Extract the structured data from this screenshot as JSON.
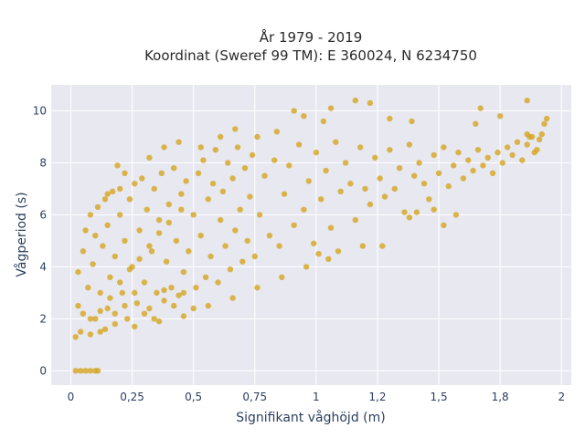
{
  "chart_data": {
    "type": "scatter",
    "title_lines": [
      "År 1979 - 2019",
      "Koordinat (Sweref 99 TM): E 360024, N 6234750"
    ],
    "xlabel": "Signifikant våghöjd (m)",
    "ylabel": "Vågperiod (s)",
    "xlim": [
      -0.08,
      2.04
    ],
    "ylim": [
      -0.55,
      11
    ],
    "x_ticks": [
      {
        "value": 0,
        "label": "0"
      },
      {
        "value": 0.25,
        "label": "0,25"
      },
      {
        "value": 0.5,
        "label": "0,5"
      },
      {
        "value": 0.75,
        "label": "0,75"
      },
      {
        "value": 1,
        "label": "1"
      },
      {
        "value": 1.25,
        "label": "1,2"
      },
      {
        "value": 1.5,
        "label": "1,5"
      },
      {
        "value": 1.75,
        "label": "1,8"
      },
      {
        "value": 2,
        "label": "2"
      }
    ],
    "y_ticks": [
      {
        "value": 0,
        "label": "0"
      },
      {
        "value": 2,
        "label": "2"
      },
      {
        "value": 4,
        "label": "4"
      },
      {
        "value": 6,
        "label": "6"
      },
      {
        "value": 8,
        "label": "8"
      },
      {
        "value": 10,
        "label": "10"
      }
    ],
    "grid": true,
    "marker_color": "#D4A520",
    "plot_background": "#E8E8F1",
    "series": [
      {
        "points": [
          [
            0.02,
            0
          ],
          [
            0.04,
            0
          ],
          [
            0.06,
            0
          ],
          [
            0.08,
            0
          ],
          [
            0.1,
            0
          ],
          [
            0.11,
            0
          ],
          [
            0.02,
            1.3
          ],
          [
            0.03,
            2.5
          ],
          [
            0.03,
            3.8
          ],
          [
            0.04,
            1.5
          ],
          [
            0.05,
            4.6
          ],
          [
            0.05,
            2.2
          ],
          [
            0.06,
            5.4
          ],
          [
            0.07,
            3.2
          ],
          [
            0.08,
            1.4
          ],
          [
            0.08,
            6.0
          ],
          [
            0.09,
            4.1
          ],
          [
            0.1,
            2.0
          ],
          [
            0.1,
            5.2
          ],
          [
            0.11,
            6.3
          ],
          [
            0.12,
            3.0
          ],
          [
            0.12,
            1.5
          ],
          [
            0.13,
            4.8
          ],
          [
            0.14,
            6.6
          ],
          [
            0.15,
            2.4
          ],
          [
            0.15,
            5.6
          ],
          [
            0.16,
            3.6
          ],
          [
            0.17,
            6.9
          ],
          [
            0.18,
            1.8
          ],
          [
            0.18,
            4.4
          ],
          [
            0.2,
            6.0
          ],
          [
            0.2,
            7.0
          ],
          [
            0.21,
            3.0
          ],
          [
            0.22,
            5.0
          ],
          [
            0.23,
            2.0
          ],
          [
            0.24,
            6.6
          ],
          [
            0.25,
            4.0
          ],
          [
            0.26,
            7.2
          ],
          [
            0.27,
            2.6
          ],
          [
            0.28,
            5.4
          ],
          [
            0.29,
            7.4
          ],
          [
            0.3,
            3.4
          ],
          [
            0.31,
            6.2
          ],
          [
            0.32,
            2.4
          ],
          [
            0.33,
            4.6
          ],
          [
            0.34,
            7.0
          ],
          [
            0.35,
            3.0
          ],
          [
            0.36,
            5.8
          ],
          [
            0.37,
            7.6
          ],
          [
            0.38,
            2.7
          ],
          [
            0.39,
            4.2
          ],
          [
            0.4,
            6.4
          ],
          [
            0.41,
            3.2
          ],
          [
            0.42,
            7.8
          ],
          [
            0.43,
            5.0
          ],
          [
            0.44,
            2.9
          ],
          [
            0.45,
            6.8
          ],
          [
            0.46,
            3.8
          ],
          [
            0.47,
            7.3
          ],
          [
            0.48,
            4.6
          ],
          [
            0.5,
            6.0
          ],
          [
            0.51,
            3.2
          ],
          [
            0.52,
            7.6
          ],
          [
            0.53,
            5.2
          ],
          [
            0.54,
            8.1
          ],
          [
            0.55,
            3.6
          ],
          [
            0.56,
            6.6
          ],
          [
            0.57,
            4.4
          ],
          [
            0.58,
            7.2
          ],
          [
            0.59,
            8.5
          ],
          [
            0.6,
            3.4
          ],
          [
            0.61,
            5.8
          ],
          [
            0.62,
            6.9
          ],
          [
            0.63,
            4.8
          ],
          [
            0.64,
            8.0
          ],
          [
            0.65,
            3.9
          ],
          [
            0.66,
            7.4
          ],
          [
            0.67,
            5.4
          ],
          [
            0.68,
            8.6
          ],
          [
            0.69,
            6.2
          ],
          [
            0.7,
            4.2
          ],
          [
            0.71,
            7.8
          ],
          [
            0.72,
            5.0
          ],
          [
            0.73,
            6.7
          ],
          [
            0.74,
            8.3
          ],
          [
            0.75,
            4.4
          ],
          [
            0.77,
            6.0
          ],
          [
            0.79,
            7.5
          ],
          [
            0.81,
            5.2
          ],
          [
            0.83,
            8.1
          ],
          [
            0.85,
            4.8
          ],
          [
            0.87,
            6.8
          ],
          [
            0.89,
            7.9
          ],
          [
            0.91,
            5.6
          ],
          [
            0.93,
            8.7
          ],
          [
            0.95,
            6.2
          ],
          [
            0.97,
            7.3
          ],
          [
            0.99,
            4.9
          ],
          [
            1.0,
            8.4
          ],
          [
            1.02,
            6.6
          ],
          [
            1.04,
            7.7
          ],
          [
            1.06,
            5.5
          ],
          [
            1.08,
            8.8
          ],
          [
            1.1,
            6.9
          ],
          [
            1.12,
            8.0
          ],
          [
            1.14,
            7.2
          ],
          [
            1.16,
            5.8
          ],
          [
            1.18,
            8.6
          ],
          [
            1.2,
            7.0
          ],
          [
            1.22,
            6.4
          ],
          [
            1.24,
            8.2
          ],
          [
            1.26,
            7.4
          ],
          [
            1.28,
            6.7
          ],
          [
            1.3,
            8.5
          ],
          [
            1.32,
            7.0
          ],
          [
            1.34,
            7.8
          ],
          [
            1.36,
            6.1
          ],
          [
            1.38,
            8.7
          ],
          [
            1.4,
            7.5
          ],
          [
            1.42,
            8.0
          ],
          [
            1.44,
            7.2
          ],
          [
            1.46,
            6.6
          ],
          [
            1.48,
            8.3
          ],
          [
            1.5,
            7.6
          ],
          [
            1.52,
            8.6
          ],
          [
            1.54,
            7.1
          ],
          [
            1.56,
            7.9
          ],
          [
            1.58,
            8.4
          ],
          [
            1.6,
            7.4
          ],
          [
            1.62,
            8.1
          ],
          [
            1.64,
            7.7
          ],
          [
            1.66,
            8.5
          ],
          [
            1.68,
            7.9
          ],
          [
            1.7,
            8.2
          ],
          [
            1.72,
            7.6
          ],
          [
            1.74,
            8.4
          ],
          [
            1.76,
            8.0
          ],
          [
            1.78,
            8.6
          ],
          [
            1.8,
            8.3
          ],
          [
            1.82,
            8.8
          ],
          [
            1.84,
            8.1
          ],
          [
            1.86,
            8.7
          ],
          [
            1.88,
            9.0
          ],
          [
            1.9,
            8.5
          ],
          [
            1.92,
            9.1
          ],
          [
            1.94,
            9.7
          ],
          [
            1.93,
            9.5
          ],
          [
            1.91,
            8.9
          ],
          [
            1.89,
            8.4
          ],
          [
            1.87,
            9.0
          ],
          [
            0.76,
            9.0
          ],
          [
            0.84,
            9.2
          ],
          [
            0.91,
            10.0
          ],
          [
            0.95,
            9.8
          ],
          [
            1.03,
            9.6
          ],
          [
            1.06,
            10.1
          ],
          [
            1.16,
            10.4
          ],
          [
            1.22,
            10.3
          ],
          [
            1.3,
            9.7
          ],
          [
            1.39,
            9.6
          ],
          [
            1.65,
            9.5
          ],
          [
            1.67,
            10.1
          ],
          [
            1.75,
            9.8
          ],
          [
            1.86,
            10.4
          ],
          [
            1.86,
            9.1
          ],
          [
            0.32,
            8.2
          ],
          [
            0.38,
            8.6
          ],
          [
            0.44,
            8.8
          ],
          [
            0.53,
            8.6
          ],
          [
            0.61,
            9.0
          ],
          [
            0.67,
            9.3
          ],
          [
            0.19,
            7.9
          ],
          [
            0.15,
            6.8
          ],
          [
            0.22,
            7.6
          ],
          [
            1.01,
            4.5
          ],
          [
            1.05,
            4.3
          ],
          [
            1.09,
            4.6
          ],
          [
            1.19,
            4.8
          ],
          [
            1.27,
            4.8
          ],
          [
            1.41,
            6.1
          ],
          [
            1.52,
            5.6
          ],
          [
            1.57,
            6.0
          ],
          [
            1.48,
            6.2
          ],
          [
            1.38,
            5.9
          ],
          [
            0.26,
            1.7
          ],
          [
            0.36,
            1.9
          ],
          [
            0.46,
            2.1
          ],
          [
            0.56,
            2.5
          ],
          [
            0.66,
            2.8
          ],
          [
            0.76,
            3.2
          ],
          [
            0.86,
            3.6
          ],
          [
            0.96,
            4.0
          ],
          [
            0.08,
            2.0
          ],
          [
            0.12,
            2.3
          ],
          [
            0.16,
            2.8
          ],
          [
            0.2,
            3.4
          ],
          [
            0.24,
            3.9
          ],
          [
            0.28,
            4.3
          ],
          [
            0.32,
            4.8
          ],
          [
            0.36,
            5.3
          ],
          [
            0.4,
            5.7
          ],
          [
            0.45,
            6.2
          ],
          [
            0.14,
            1.6
          ],
          [
            0.18,
            2.2
          ],
          [
            0.22,
            2.5
          ],
          [
            0.26,
            3.0
          ],
          [
            0.3,
            2.2
          ],
          [
            0.34,
            2.0
          ],
          [
            0.38,
            3.1
          ],
          [
            0.42,
            2.5
          ],
          [
            0.46,
            3.0
          ],
          [
            0.5,
            2.4
          ]
        ]
      }
    ]
  }
}
